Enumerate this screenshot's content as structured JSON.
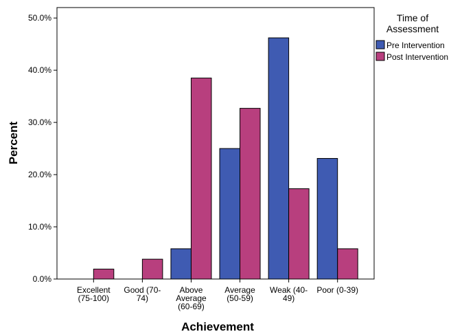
{
  "chart_data": {
    "type": "bar",
    "xlabel": "Achievement",
    "ylabel": "Percent",
    "ylim": [
      0,
      52
    ],
    "yticks": [
      "0.0%",
      "10.0%",
      "20.0%",
      "30.0%",
      "40.0%",
      "50.0%"
    ],
    "ytick_values": [
      0,
      10,
      20,
      30,
      40,
      50
    ],
    "categories": [
      [
        "Excellent",
        "(75-100)"
      ],
      [
        "Good (70-",
        "74)"
      ],
      [
        "Above",
        "Average",
        "(60-69)"
      ],
      [
        "Average",
        "(50-59)"
      ],
      [
        "Weak (40-",
        "49)"
      ],
      [
        "Poor (0-39)"
      ]
    ],
    "legend": {
      "title": [
        "Time of",
        "Assessment"
      ],
      "position": "right"
    },
    "series": [
      {
        "name": "Pre Intervention",
        "color": "#3f5bb2",
        "values": [
          0,
          0,
          5.8,
          25.0,
          46.2,
          23.1
        ]
      },
      {
        "name": "Post Intervention",
        "color": "#b83f7e",
        "values": [
          1.9,
          3.8,
          38.5,
          32.7,
          17.3,
          5.8
        ]
      }
    ]
  }
}
